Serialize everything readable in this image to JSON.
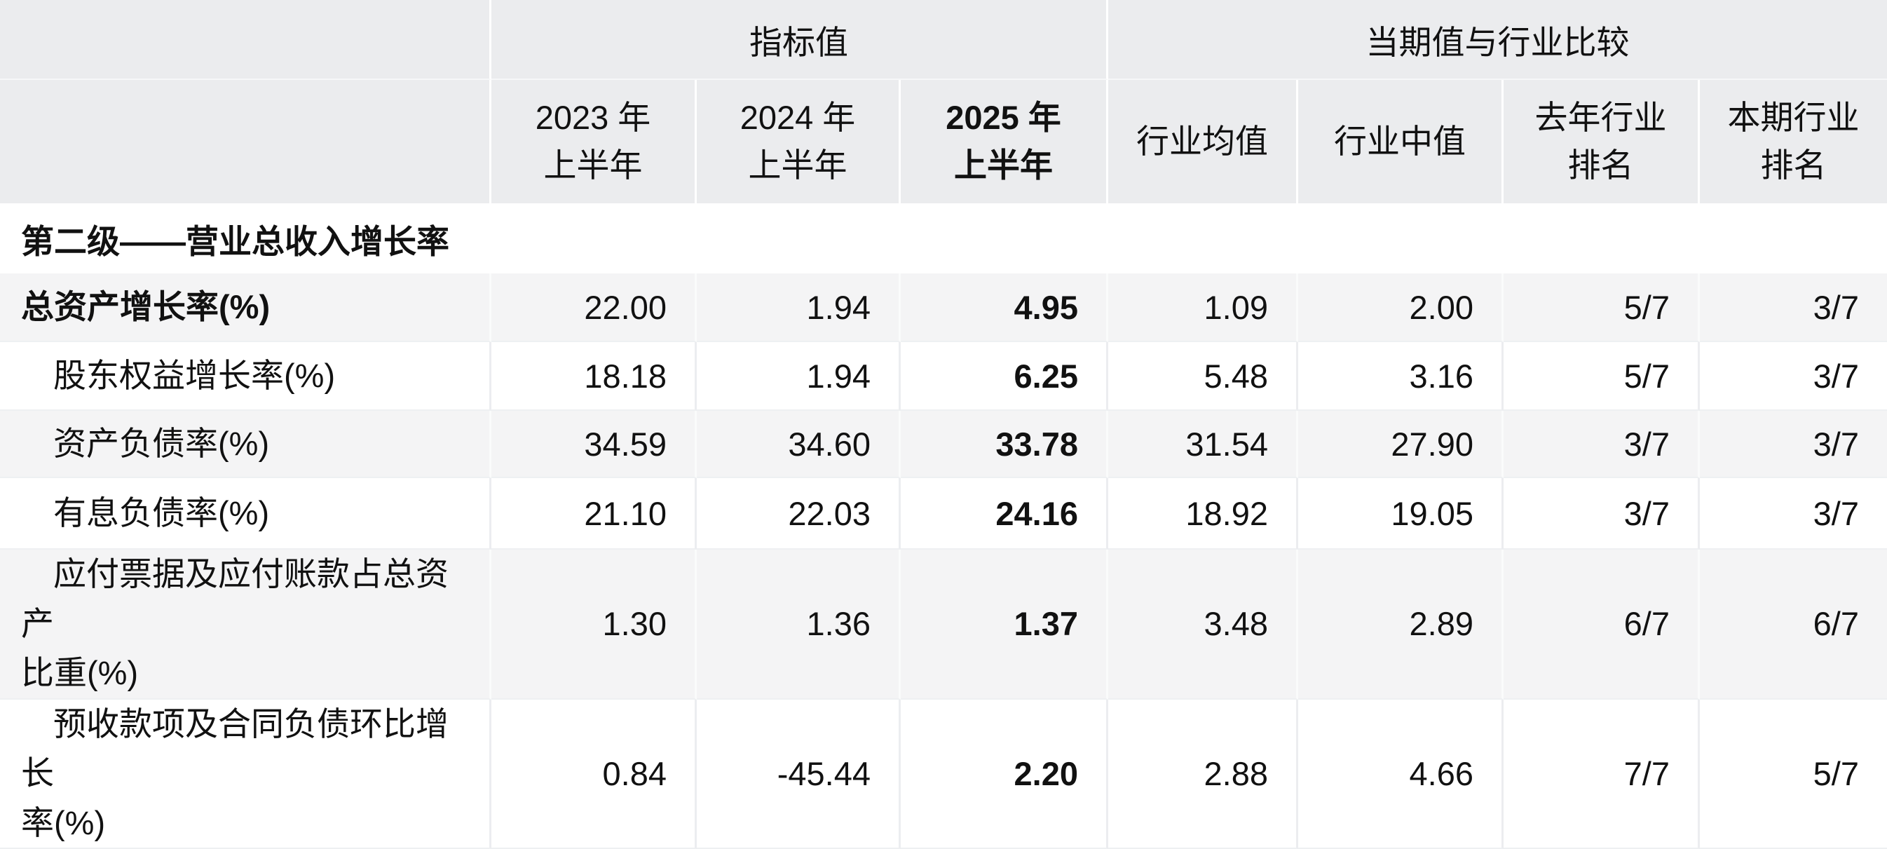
{
  "table": {
    "group_headers": {
      "corner": "",
      "indicator_value": "指标值",
      "industry_comparison": "当期值与行业比较"
    },
    "column_headers": [
      "2023 年\n上半年",
      "2024 年\n上半年",
      "2025 年\n上半年",
      "行业均值",
      "行业中值",
      "去年行业\n排名",
      "本期行业\n排名"
    ],
    "section_title": "第二级——营业总收入增长率",
    "rows": [
      {
        "label": "总资产增长率(%)",
        "values": [
          "22.00",
          "1.94",
          "4.95",
          "1.09",
          "2.00",
          "5/7",
          "3/7"
        ]
      },
      {
        "label": "股东权益增长率(%)",
        "values": [
          "18.18",
          "1.94",
          "6.25",
          "5.48",
          "3.16",
          "5/7",
          "3/7"
        ]
      },
      {
        "label": "资产负债率(%)",
        "values": [
          "34.59",
          "34.60",
          "33.78",
          "31.54",
          "27.90",
          "3/7",
          "3/7"
        ]
      },
      {
        "label": "有息负债率(%)",
        "values": [
          "21.10",
          "22.03",
          "24.16",
          "18.92",
          "19.05",
          "3/7",
          "3/7"
        ]
      },
      {
        "label": "应付票据及应付账款占总资产\n比重(%)",
        "values": [
          "1.30",
          "1.36",
          "1.37",
          "3.48",
          "2.89",
          "6/7",
          "6/7"
        ]
      },
      {
        "label": "预收款项及合同负债环比增长\n率(%)",
        "values": [
          "0.84",
          "-45.44",
          "2.20",
          "2.88",
          "4.66",
          "7/7",
          "5/7"
        ]
      }
    ],
    "colors": {
      "header_bg": "#ebecee",
      "stripe_bg": "#f4f4f5",
      "row_bg": "#ffffff",
      "text": "#111111",
      "grid_line": "#ecedf0"
    }
  }
}
